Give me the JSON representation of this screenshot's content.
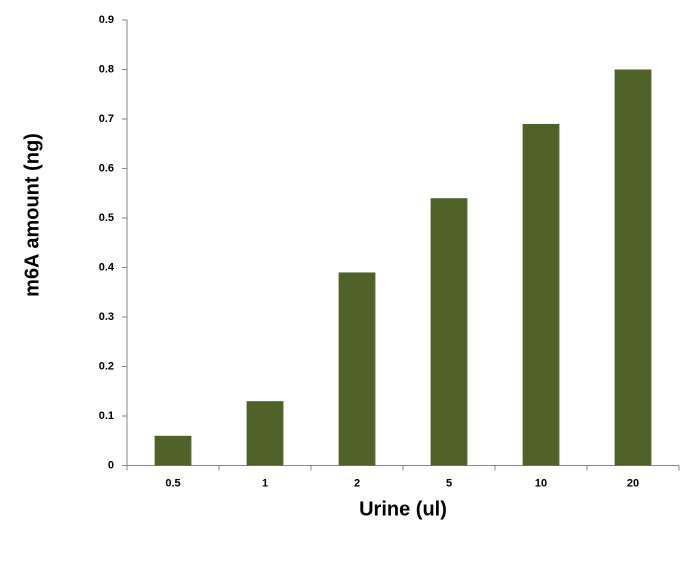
{
  "chart_data": {
    "type": "bar",
    "x_label": "Urine (ul)",
    "y_label": "m6A amount (ng)",
    "categories": [
      "0.5",
      "1",
      "2",
      "5",
      "10",
      "20"
    ],
    "values": [
      0.06,
      0.13,
      0.39,
      0.54,
      0.69,
      0.8
    ],
    "color": "#4f6228",
    "ylim": [
      0,
      0.9
    ],
    "yticks": [
      0,
      0.1,
      0.2,
      0.3,
      0.4,
      0.5,
      0.6,
      0.7,
      0.8,
      0.9
    ],
    "grid": false
  }
}
